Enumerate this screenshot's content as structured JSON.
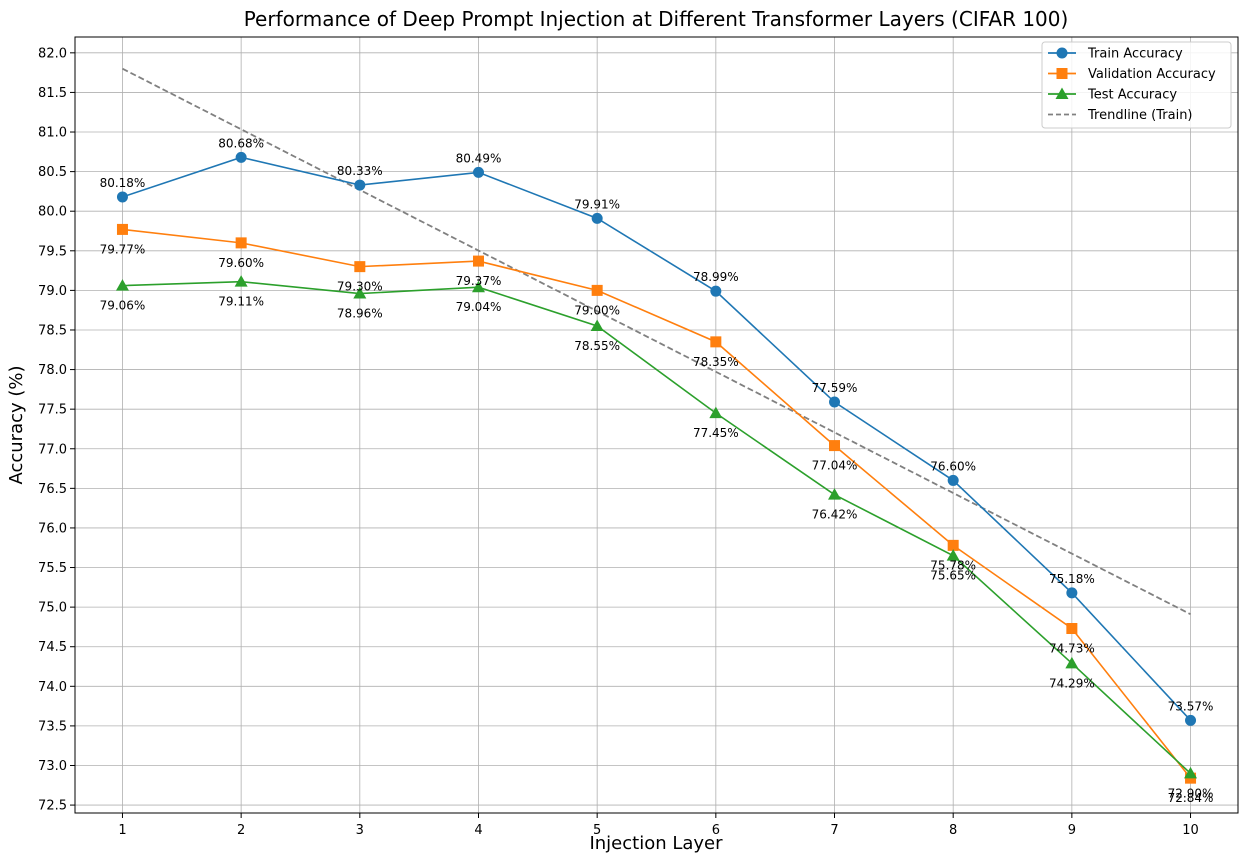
{
  "chart_data": {
    "type": "line",
    "title": "Performance of Deep Prompt Injection at Different Transformer Layers (CIFAR 100)",
    "xlabel": "Injection Layer",
    "ylabel": "Accuracy (%)",
    "x": [
      1,
      2,
      3,
      4,
      5,
      6,
      7,
      8,
      9,
      10
    ],
    "x_ticks": [
      "1",
      "2",
      "3",
      "4",
      "5",
      "6",
      "7",
      "8",
      "9",
      "10"
    ],
    "xlim": [
      0.6,
      10.4
    ],
    "ylim": [
      72.4,
      82.2
    ],
    "y_ticks": [
      "72.5",
      "73.0",
      "73.5",
      "74.0",
      "74.5",
      "75.0",
      "75.5",
      "76.0",
      "76.5",
      "77.0",
      "77.5",
      "78.0",
      "78.5",
      "79.0",
      "79.5",
      "80.0",
      "80.5",
      "81.0",
      "81.5",
      "82.0"
    ],
    "grid": true,
    "legend_position": "top-right",
    "series": [
      {
        "name": "Train Accuracy",
        "color": "#1f77b4",
        "marker": "circle",
        "label_position": "above",
        "values": [
          80.18,
          80.68,
          80.33,
          80.49,
          79.91,
          78.99,
          77.59,
          76.6,
          75.18,
          73.57
        ],
        "labels": [
          "80.18%",
          "80.68%",
          "80.33%",
          "80.49%",
          "79.91%",
          "78.99%",
          "77.59%",
          "76.60%",
          "75.18%",
          "73.57%"
        ]
      },
      {
        "name": "Validation Accuracy",
        "color": "#ff7f0e",
        "marker": "square",
        "label_position": "below",
        "values": [
          79.77,
          79.6,
          79.3,
          79.37,
          79.0,
          78.35,
          77.04,
          75.78,
          74.73,
          72.84
        ],
        "labels": [
          "79.77%",
          "79.60%",
          "79.30%",
          "79.37%",
          "79.00%",
          "78.35%",
          "77.04%",
          "75.78%",
          "74.73%",
          "72.84%"
        ]
      },
      {
        "name": "Test Accuracy",
        "color": "#2ca02c",
        "marker": "triangle",
        "label_position": "below",
        "values": [
          79.06,
          79.11,
          78.96,
          79.04,
          78.55,
          77.45,
          76.42,
          75.65,
          74.29,
          72.9
        ],
        "labels": [
          "79.06%",
          "79.11%",
          "78.96%",
          "79.04%",
          "78.55%",
          "77.45%",
          "76.42%",
          "75.65%",
          "74.29%",
          "72.90%"
        ]
      }
    ],
    "trendline": {
      "name": "Trendline (Train)",
      "color": "#808080",
      "style": "dashed",
      "x": [
        1,
        10
      ],
      "values": [
        81.8,
        74.91
      ]
    }
  }
}
